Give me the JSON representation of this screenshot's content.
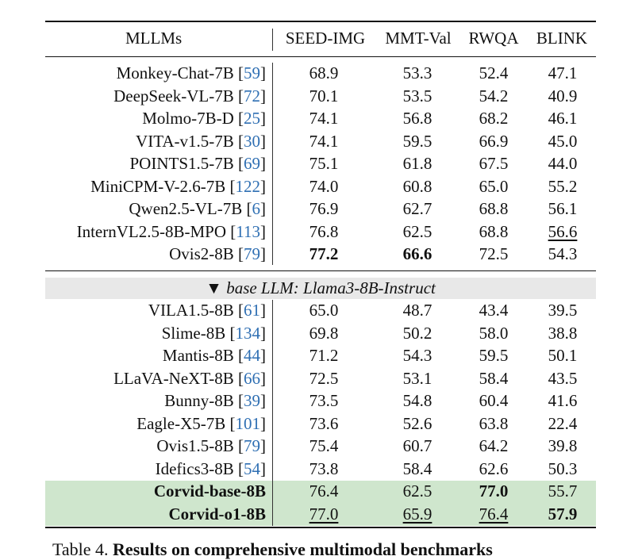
{
  "header": {
    "model": "MLLMs",
    "cols": [
      "SEED-IMG",
      "MMT-Val",
      "RWQA",
      "BLINK"
    ]
  },
  "section_label": "base LLM: Llama3-8B-Instruct",
  "section_marker": "▼",
  "group1": [
    {
      "name": "Monkey-Chat-7B",
      "ref": "59",
      "v": [
        "68.9",
        "53.3",
        "52.4",
        "47.1"
      ]
    },
    {
      "name": "DeepSeek-VL-7B",
      "ref": "72",
      "v": [
        "70.1",
        "53.5",
        "54.2",
        "40.9"
      ]
    },
    {
      "name": "Molmo-7B-D",
      "ref": "25",
      "v": [
        "74.1",
        "56.8",
        "68.2",
        "46.1"
      ]
    },
    {
      "name": "VITA-v1.5-7B",
      "ref": "30",
      "v": [
        "74.1",
        "59.5",
        "66.9",
        "45.0"
      ]
    },
    {
      "name": "POINTS1.5-7B",
      "ref": "69",
      "v": [
        "75.1",
        "61.8",
        "67.5",
        "44.0"
      ]
    },
    {
      "name": "MiniCPM-V-2.6-7B",
      "ref": "122",
      "v": [
        "74.0",
        "60.8",
        "65.0",
        "55.2"
      ]
    },
    {
      "name": "Qwen2.5-VL-7B",
      "ref": "6",
      "v": [
        "76.9",
        "62.7",
        "68.8",
        "56.1"
      ]
    },
    {
      "name": "InternVL2.5-8B-MPO",
      "ref": "113",
      "v": [
        "76.8",
        "62.5",
        "68.8",
        "56.6"
      ]
    },
    {
      "name": "Ovis2-8B",
      "ref": "79",
      "v": [
        "77.2",
        "66.6",
        "72.5",
        "54.3"
      ]
    }
  ],
  "group2": [
    {
      "name": "VILA1.5-8B",
      "ref": "61",
      "v": [
        "65.0",
        "48.7",
        "43.4",
        "39.5"
      ]
    },
    {
      "name": "Slime-8B",
      "ref": "134",
      "v": [
        "69.8",
        "50.2",
        "58.0",
        "38.8"
      ]
    },
    {
      "name": "Mantis-8B",
      "ref": "44",
      "v": [
        "71.2",
        "54.3",
        "59.5",
        "50.1"
      ]
    },
    {
      "name": "LLaVA-NeXT-8B",
      "ref": "66",
      "v": [
        "72.5",
        "53.1",
        "58.4",
        "43.5"
      ]
    },
    {
      "name": "Bunny-8B",
      "ref": "39",
      "v": [
        "73.5",
        "54.8",
        "60.4",
        "41.6"
      ]
    },
    {
      "name": "Eagle-X5-7B",
      "ref": "101",
      "v": [
        "73.6",
        "52.6",
        "63.8",
        "22.4"
      ]
    },
    {
      "name": "Ovis1.5-8B",
      "ref": "79",
      "v": [
        "75.4",
        "60.7",
        "64.2",
        "39.8"
      ]
    },
    {
      "name": "Idefics3-8B",
      "ref": "54",
      "v": [
        "73.8",
        "58.4",
        "62.6",
        "50.3"
      ]
    }
  ],
  "ours": [
    {
      "name": "Corvid-base-8B",
      "v": [
        "76.4",
        "62.5",
        "77.0",
        "55.7"
      ]
    },
    {
      "name": "Corvid-o1-8B",
      "v": [
        "77.0",
        "65.9",
        "76.4",
        "57.9"
      ]
    }
  ],
  "caption": {
    "prefix": "Table 4. ",
    "title": "Results on comprehensive multimodal benchmarks"
  },
  "colors": {
    "ref_link": "#2f6fb3",
    "highlight": "#cfe6cd",
    "section_band": "#e8e8e8"
  }
}
